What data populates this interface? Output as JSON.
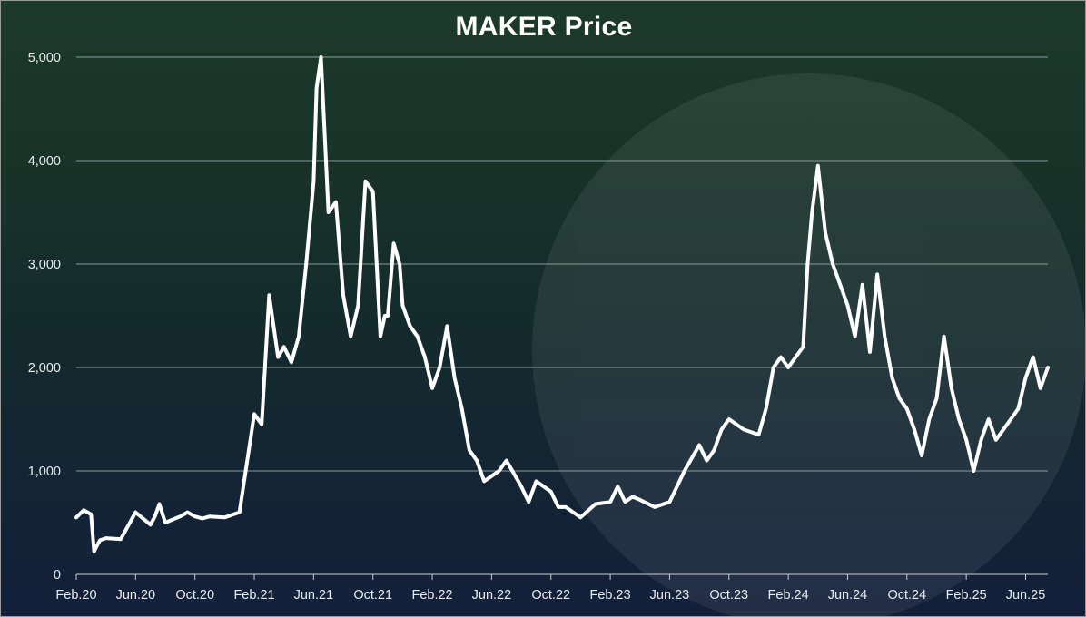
{
  "chart_data": {
    "type": "line",
    "title": "MAKER Price",
    "xlabel": "",
    "ylabel": "",
    "ylim": [
      0,
      5000
    ],
    "y_ticks": [
      0,
      1000,
      2000,
      3000,
      4000,
      5000
    ],
    "y_tick_labels": [
      "0",
      "1,000",
      "2,000",
      "3,000",
      "4,000",
      "5,000"
    ],
    "x_tick_labels": [
      "Feb.20",
      "Jun.20",
      "Oct.20",
      "Feb.21",
      "Jun.21",
      "Oct.21",
      "Feb.22",
      "Jun.22",
      "Oct.22",
      "Feb.23",
      "Jun.23",
      "Oct.23",
      "Feb.24",
      "Jun.24",
      "Oct.24",
      "Feb.25",
      "Jun.25"
    ],
    "x_range_months": [
      0,
      65.5
    ],
    "grid": true,
    "legend": "none",
    "line_color": "#ffffff",
    "watermark": "MakerDAO logo",
    "series": [
      {
        "name": "MAKER Price",
        "x_month_index": [
          0,
          0.5,
          1,
          1.2,
          1.4,
          1.6,
          2,
          3,
          4,
          5,
          5.3,
          5.6,
          6,
          7,
          7.5,
          8,
          8.5,
          9,
          10,
          11,
          12,
          12.5,
          13,
          13.3,
          13.6,
          14,
          14.5,
          15,
          15.5,
          16,
          16.2,
          16.5,
          17,
          17.5,
          18,
          18.5,
          19,
          19.5,
          20,
          20.5,
          20.8,
          21,
          21.4,
          21.8,
          22,
          22.5,
          23,
          23.5,
          24,
          24.5,
          25,
          25.5,
          26,
          26.5,
          27,
          27.5,
          28,
          28.5,
          29,
          30,
          30.5,
          31,
          32,
          32.5,
          33,
          34,
          35,
          36,
          36.5,
          37,
          37.5,
          38,
          39,
          40,
          41,
          42,
          42.5,
          43,
          43.5,
          44,
          45,
          46,
          46.5,
          47,
          47.5,
          48,
          48.5,
          49,
          49.3,
          49.6,
          50,
          50.5,
          51,
          51.5,
          52,
          52.5,
          53,
          53.5,
          54,
          54.5,
          55,
          55.5,
          56,
          56.5,
          57,
          57.5,
          58,
          58.5,
          59,
          59.5,
          60,
          60.5,
          61,
          61.5,
          62,
          62.5,
          63,
          63.5,
          64,
          64.5,
          65,
          65.5
        ],
        "values": [
          550,
          620,
          580,
          220,
          280,
          330,
          350,
          340,
          600,
          480,
          560,
          680,
          500,
          560,
          600,
          560,
          540,
          560,
          550,
          600,
          1550,
          1450,
          2700,
          2400,
          2100,
          2200,
          2050,
          2300,
          3000,
          3800,
          4700,
          5000,
          3500,
          3600,
          2700,
          2300,
          2600,
          3800,
          3700,
          2300,
          2500,
          2500,
          3200,
          3000,
          2600,
          2400,
          2300,
          2100,
          1800,
          2000,
          2400,
          1900,
          1600,
          1200,
          1100,
          900,
          950,
          1000,
          1100,
          850,
          700,
          900,
          800,
          650,
          650,
          550,
          680,
          700,
          850,
          700,
          750,
          720,
          650,
          700,
          1000,
          1250,
          1100,
          1200,
          1400,
          1500,
          1400,
          1350,
          1600,
          2000,
          2100,
          2000,
          2100,
          2200,
          3000,
          3500,
          3950,
          3300,
          3000,
          2800,
          2600,
          2300,
          2800,
          2150,
          2900,
          2300,
          1900,
          1700,
          1600,
          1400,
          1150,
          1500,
          1700,
          2300,
          1800,
          1500,
          1300,
          1000,
          1300,
          1500,
          1300,
          1400,
          1500,
          1600,
          1900,
          2100,
          1800,
          2000
        ]
      }
    ]
  }
}
